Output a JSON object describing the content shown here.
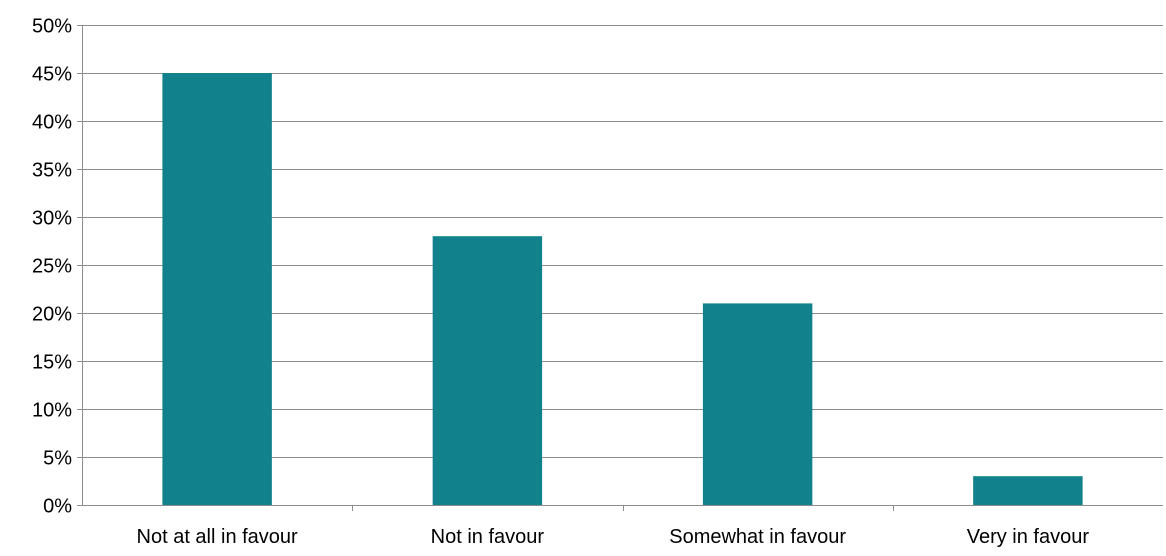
{
  "chart_data": {
    "type": "bar",
    "categories": [
      "Not at all in favour",
      "Not in favour",
      "Somewhat in favour",
      "Very in favour"
    ],
    "values": [
      45,
      28,
      21,
      3
    ],
    "value_format": "percent",
    "title": "",
    "xlabel": "",
    "ylabel": "",
    "ylim": [
      0,
      50
    ],
    "yticks": [
      0,
      5,
      10,
      15,
      20,
      25,
      30,
      35,
      40,
      45,
      50
    ],
    "ytick_labels": [
      "0%",
      "5%",
      "10%",
      "15%",
      "20%",
      "25%",
      "30%",
      "35%",
      "40%",
      "45%",
      "50%"
    ],
    "grid": true,
    "legend": "none",
    "colors": {
      "bar": "#11818C",
      "grid": "#8C8C8C",
      "axis": "#8C8C8C"
    }
  }
}
